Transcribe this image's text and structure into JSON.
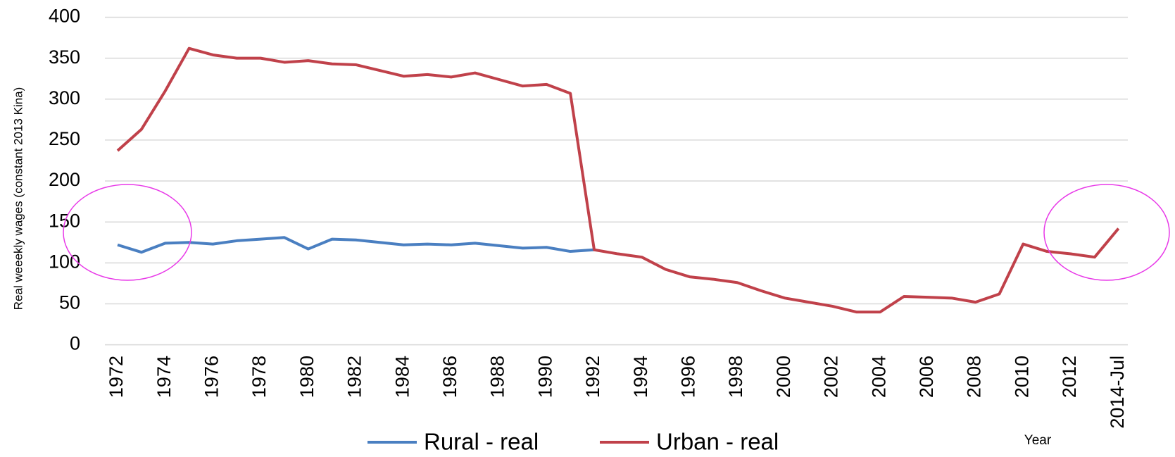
{
  "chart_data": {
    "type": "line",
    "y_axis_label": "Real weeekly wages (constant  2013 Kina)",
    "x_axis_label": "Year",
    "categories": [
      "1972",
      null,
      "1974",
      null,
      "1976",
      null,
      "1978",
      null,
      "1980",
      null,
      "1982",
      null,
      "1984",
      null,
      "1986",
      null,
      "1988",
      null,
      "1990",
      null,
      "1992",
      null,
      "1994",
      null,
      "1996",
      null,
      "1998",
      null,
      "2000",
      null,
      "2002",
      null,
      "2004",
      null,
      "2006",
      null,
      "2008",
      null,
      "2010",
      null,
      "2012",
      null,
      "2014-Jul"
    ],
    "series": [
      {
        "name": "Rural - real",
        "color": "#4a7fc1",
        "values": [
          122,
          113,
          124,
          125,
          123,
          127,
          129,
          131,
          117,
          129,
          128,
          125,
          122,
          123,
          122,
          124,
          121,
          118,
          119,
          114,
          116,
          null,
          null,
          null,
          null,
          null,
          null,
          null,
          null,
          null,
          null,
          null,
          null,
          null,
          null,
          null,
          null,
          null,
          null,
          null,
          null,
          null,
          null
        ]
      },
      {
        "name": "Urban - real",
        "color": "#c0414a",
        "values": [
          237,
          263,
          310,
          362,
          354,
          350,
          350,
          345,
          347,
          343,
          342,
          335,
          328,
          330,
          327,
          332,
          324,
          316,
          318,
          307,
          116,
          111,
          107,
          92,
          83,
          80,
          76,
          66,
          57,
          52,
          47,
          40,
          40,
          59,
          58,
          57,
          52,
          62,
          123,
          114,
          111,
          107,
          142
        ]
      }
    ],
    "ylim": [
      0,
      400
    ],
    "yticks": [
      0,
      50,
      100,
      150,
      200,
      250,
      300,
      350,
      400
    ],
    "grid": true
  }
}
